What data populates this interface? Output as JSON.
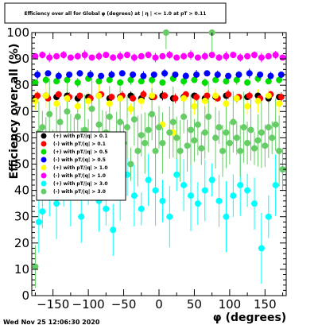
{
  "title": "Efficiency over all for Global φ (degrees) at | η | <= 1.0 at pT > 0.11",
  "timestamp": "Wed Nov 25 12:06:30 2020",
  "chart_data": {
    "type": "scatter",
    "title": "Efficiency over all for Global φ (degrees) at | η | <= 1.0 at pT > 0.11",
    "xlabel": "φ (degrees)",
    "ylabel": "Efficiency over all (%)",
    "xlim": [
      -180,
      180
    ],
    "ylim": [
      0,
      100
    ],
    "x_ticks": [
      "−150",
      "−100",
      "−50",
      "0",
      "50",
      "100",
      "150"
    ],
    "y_ticks": [
      "0",
      "10",
      "20",
      "30",
      "40",
      "50",
      "60",
      "70",
      "80",
      "90",
      "100"
    ],
    "grid": false,
    "legend_position": "center-left",
    "series": [
      {
        "name": "(+) with pT/|q| > 0.1",
        "color": "#000000",
        "x": [
          -175,
          -160,
          -145,
          -130,
          -115,
          -100,
          -85,
          -70,
          -55,
          -40,
          -25,
          -10,
          5,
          20,
          35,
          50,
          65,
          80,
          95,
          110,
          125,
          140,
          155,
          170
        ],
        "y": [
          75,
          76,
          75.5,
          76,
          75,
          75.5,
          76,
          75,
          75.5,
          76,
          75,
          75.5,
          76,
          75,
          75.5,
          76,
          75,
          75.5,
          76,
          75,
          75.5,
          76,
          75,
          75.5
        ]
      },
      {
        "name": "(-) with pT/|q| > 0.1",
        "color": "#ff0000",
        "x": [
          -172,
          -157,
          -142,
          -127,
          -112,
          -97,
          -82,
          -67,
          -52,
          -37,
          -22,
          -7,
          8,
          23,
          38,
          53,
          68,
          83,
          98,
          113,
          128,
          143,
          158,
          173
        ],
        "y": [
          76,
          75,
          76.5,
          75.5,
          76,
          75,
          76.5,
          75.5,
          76,
          75,
          76.5,
          75.5,
          76,
          75,
          76.5,
          75.5,
          76,
          75,
          76.5,
          75.5,
          76,
          75,
          76.5,
          75.5
        ]
      },
      {
        "name": "(+) with pT/|q| > 0.5",
        "color": "#00dd00",
        "x": [
          -175,
          -160,
          -145,
          -130,
          -115,
          -100,
          -85,
          -70,
          -55,
          -40,
          -25,
          -10,
          5,
          20,
          35,
          50,
          65,
          80,
          95,
          110,
          125,
          140,
          155,
          170
        ],
        "y": [
          81,
          82,
          81.5,
          82,
          81,
          82.5,
          81.5,
          82,
          81,
          82,
          81.5,
          82,
          81,
          82.5,
          81.5,
          82,
          81,
          82,
          81.5,
          82,
          81,
          82.5,
          81.5,
          82
        ]
      },
      {
        "name": "(-) with pT/|q| > 0.5",
        "color": "#0000ff",
        "x": [
          -172,
          -157,
          -142,
          -127,
          -112,
          -97,
          -82,
          -67,
          -52,
          -37,
          -22,
          -7,
          8,
          23,
          38,
          53,
          68,
          83,
          98,
          113,
          128,
          143,
          158,
          173
        ],
        "y": [
          84,
          84.5,
          83.5,
          84,
          84.5,
          84,
          83.5,
          84,
          84.5,
          84,
          83.5,
          84,
          84.5,
          84,
          83.5,
          84,
          84.5,
          84,
          83.5,
          84,
          84.5,
          84,
          83.5,
          84
        ]
      },
      {
        "name": "(+) with pT/|q| > 1.0",
        "color": "#ffff00",
        "x": [
          -175,
          -160,
          -145,
          -130,
          -115,
          -100,
          -85,
          -70,
          -55,
          -40,
          -25,
          -10,
          5,
          20,
          35,
          50,
          65,
          80,
          95,
          110,
          125,
          140,
          155,
          170
        ],
        "y": [
          74,
          76,
          73,
          75,
          72,
          74,
          76,
          73,
          75,
          71,
          74,
          76,
          65,
          62,
          75,
          72,
          74,
          76,
          73,
          75,
          72,
          74,
          76,
          73
        ]
      },
      {
        "name": "(-) with pT/|q| > 1.0",
        "color": "#ff00ff",
        "x": [
          -175,
          -165,
          -155,
          -145,
          -135,
          -125,
          -115,
          -105,
          -95,
          -85,
          -75,
          -65,
          -55,
          -45,
          -35,
          -25,
          -15,
          -5,
          5,
          15,
          25,
          35,
          45,
          55,
          65,
          75,
          85,
          95,
          105,
          115,
          125,
          135,
          145,
          155,
          165,
          175
        ],
        "y": [
          91,
          91.5,
          90.5,
          91,
          91.5,
          90.5,
          91,
          91.5,
          90.5,
          91,
          91.5,
          90.5,
          91,
          91.5,
          90.5,
          91,
          91.5,
          90.5,
          91,
          91.5,
          90.5,
          91,
          91.5,
          90.5,
          91,
          91.5,
          90.5,
          91,
          91.5,
          90.5,
          91,
          91.5,
          90.5,
          91,
          91.5,
          90.5
        ]
      },
      {
        "name": "(+) with pT/|q| > 3.0",
        "color": "#00ffff",
        "x": [
          -170,
          -165,
          -155,
          -145,
          -135,
          -125,
          -115,
          -110,
          -100,
          -95,
          -85,
          -75,
          -65,
          -55,
          -45,
          -35,
          -25,
          -15,
          -5,
          5,
          15,
          25,
          35,
          45,
          55,
          65,
          75,
          85,
          95,
          105,
          115,
          125,
          135,
          145,
          155,
          165,
          175
        ],
        "y": [
          28,
          32,
          40,
          35,
          42,
          38,
          45,
          30,
          48,
          44,
          36,
          33,
          25,
          42,
          46,
          38,
          33,
          44,
          40,
          36,
          30,
          46,
          42,
          38,
          35,
          40,
          44,
          36,
          30,
          38,
          42,
          40,
          35,
          18,
          30,
          42,
          48
        ]
      },
      {
        "name": "(-) with pT/|q| > 3.0",
        "color": "#66cc66",
        "x": [
          -175,
          -170,
          -165,
          -160,
          -155,
          -150,
          -145,
          -140,
          -135,
          -130,
          -125,
          -120,
          -115,
          -110,
          -105,
          -100,
          -95,
          -90,
          -85,
          -80,
          -75,
          -70,
          -65,
          -60,
          -55,
          -50,
          -45,
          -40,
          -35,
          -30,
          -25,
          -20,
          -15,
          -10,
          -5,
          0,
          5,
          10,
          15,
          20,
          25,
          30,
          35,
          40,
          45,
          50,
          55,
          60,
          65,
          70,
          75,
          80,
          85,
          90,
          95,
          100,
          105,
          110,
          115,
          120,
          125,
          130,
          135,
          140,
          145,
          150,
          155,
          160,
          165,
          170,
          175
        ],
        "y": [
          11,
          62,
          64,
          58,
          69,
          55,
          60,
          66,
          52,
          70,
          61,
          56,
          68,
          54,
          63,
          59,
          71,
          50,
          65,
          57,
          62,
          68,
          53,
          60,
          66,
          58,
          64,
          50,
          67,
          55,
          61,
          58,
          63,
          69,
          55,
          64,
          58,
          100,
          62,
          66,
          60,
          55,
          68,
          57,
          63,
          59,
          65,
          56,
          62,
          68,
          100,
          60,
          64,
          55,
          62,
          58,
          66,
          60,
          55,
          64,
          58,
          63,
          56,
          59,
          62,
          57,
          64,
          60,
          65,
          55,
          48
        ]
      }
    ]
  }
}
